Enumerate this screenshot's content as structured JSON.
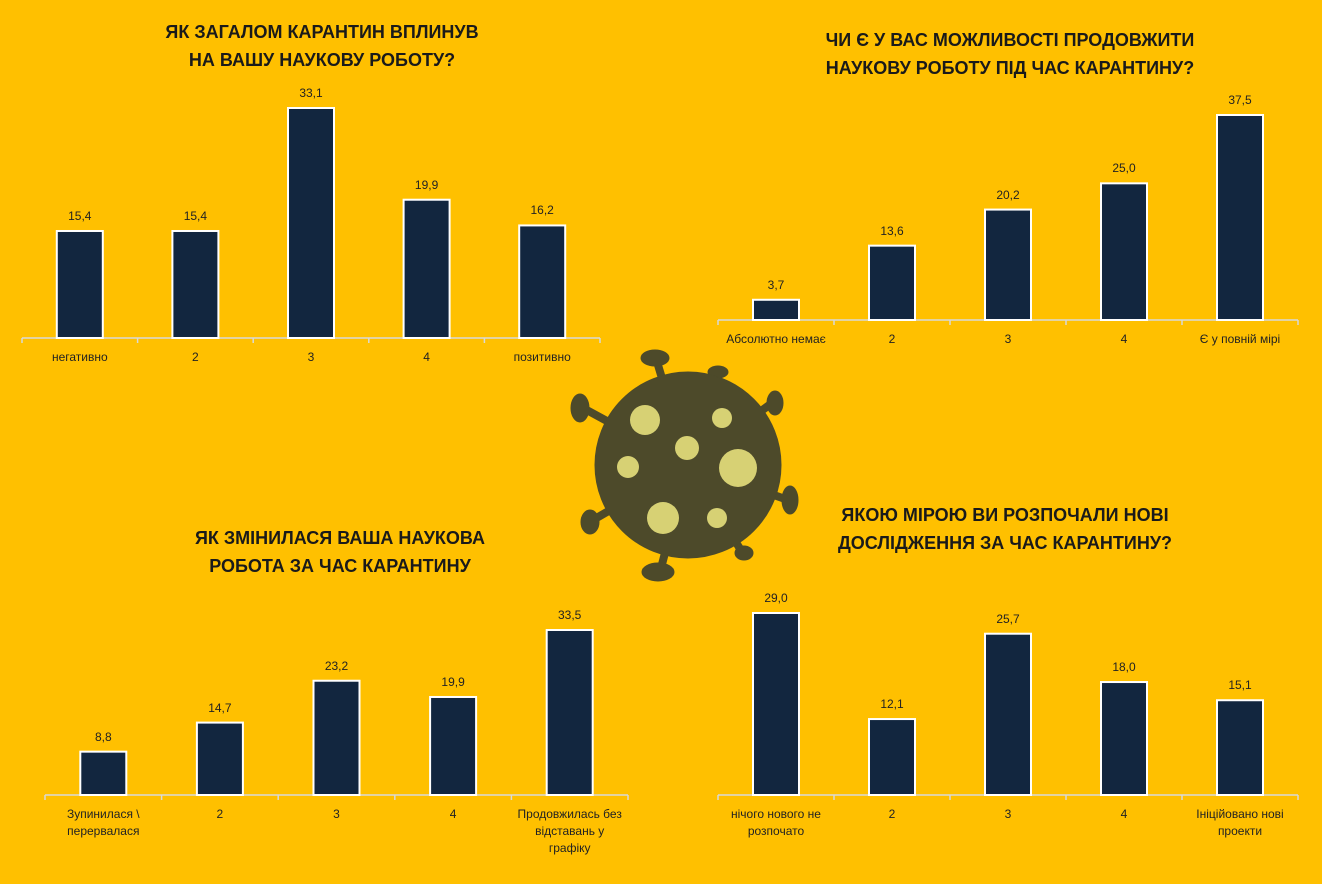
{
  "chart_data": [
    {
      "type": "bar",
      "title": "ЯК ЗАГАЛОМ КАРАНТИН ВПЛИНУВ НА ВАШУ НАУКОВУ РОБОТУ?",
      "categories": [
        "негативно",
        "2",
        "3",
        "4",
        "позитивно"
      ],
      "values": [
        15.4,
        15.4,
        33.1,
        19.9,
        16.2
      ],
      "value_labels": [
        "15,4",
        "15,4",
        "33,1",
        "19,9",
        "16,2"
      ],
      "color": "#12263f"
    },
    {
      "type": "bar",
      "title": "ЧИ Є У ВАС МОЖЛИВОСТІ ПРОДОВЖИТИ НАУКОВУ РОБОТУ ПІД ЧАС КАРАНТИНУ?",
      "categories": [
        "Абсолютно немає",
        "2",
        "3",
        "4",
        "Є у повній мірі"
      ],
      "values": [
        3.7,
        13.6,
        20.2,
        25.0,
        37.5
      ],
      "value_labels": [
        "3,7",
        "13,6",
        "20,2",
        "25,0",
        "37,5"
      ],
      "color": "#12263f"
    },
    {
      "type": "bar",
      "title": "ЯК ЗМІНИЛАСЯ ВАША НАУКОВА РОБОТА ЗА ЧАС КАРАНТИНУ",
      "categories": [
        "Зупинилася \\ перервалася",
        "2",
        "3",
        "4",
        "Продовжилась без відставань у графіку"
      ],
      "values": [
        8.8,
        14.7,
        23.2,
        19.9,
        33.5
      ],
      "value_labels": [
        "8,8",
        "14,7",
        "23,2",
        "19,9",
        "33,5"
      ],
      "color": "#12263f"
    },
    {
      "type": "bar",
      "title": "ЯКОЮ МІРОЮ ВИ РОЗПОЧАЛИ НОВІ ДОСЛІДЖЕННЯ ЗА ЧАС КАРАНТИНУ?",
      "categories": [
        "нічого нового не розпочато",
        "2",
        "3",
        "4",
        "Ініційовано нові проекти"
      ],
      "values": [
        29.0,
        12.1,
        25.7,
        18.0,
        15.1
      ],
      "value_labels": [
        "29,0",
        "12,1",
        "25,7",
        "18,0",
        "15,1"
      ],
      "color": "#12263f"
    }
  ]
}
